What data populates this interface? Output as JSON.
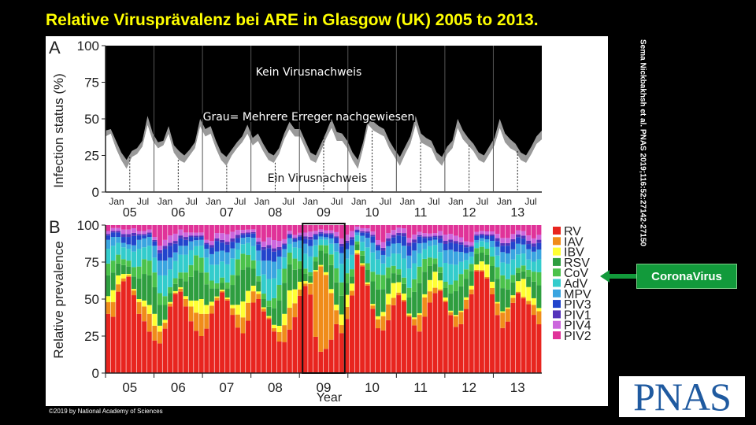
{
  "title": "Relative Virusprävalenz bei ARE in Glasgow (UK) 2005 to 2013.",
  "credit": "Sema Nickbakhsh et al. PNAS 2019;116:52:27142-27150",
  "copyright": "©2019 by National Academy of Sciences",
  "logo_text": "PNAS",
  "callout": {
    "label": "CoronaVirus",
    "arrow_color": "#129a3b"
  },
  "colors": {
    "none": "#000000",
    "multiple": "#9a9a9a",
    "single": "#ffffff"
  },
  "chart_data": [
    {
      "type": "area",
      "panel_label": "A",
      "ylabel": "Infection status (%)",
      "ylim": [
        0,
        100
      ],
      "yticks": [
        "0",
        "25",
        "50",
        "75",
        "100"
      ],
      "month_ticks": [
        "Jan",
        "Jul"
      ],
      "year_labels": [
        "05",
        "06",
        "07",
        "08",
        "09",
        "10",
        "11",
        "12",
        "13"
      ],
      "annotations": {
        "none": "Kein Virusnachweis",
        "multiple": "Grau= Mehrere Erreger nachgewiesen",
        "single": "Ein Virusnachweis"
      },
      "series": [
        {
          "key": "single",
          "values": [
            38,
            40,
            30,
            22,
            16,
            24,
            26,
            31,
            46,
            35,
            30,
            32,
            40,
            27,
            22,
            20,
            25,
            30,
            45,
            38,
            40,
            30,
            22,
            18,
            25,
            30,
            34,
            40,
            32,
            35,
            28,
            22,
            20,
            26,
            36,
            43,
            38,
            38,
            30,
            22,
            20,
            28,
            37,
            44,
            35,
            35,
            30,
            22,
            16,
            30,
            46,
            42,
            40,
            38,
            30,
            24,
            18,
            26,
            33,
            46,
            34,
            32,
            30,
            22,
            18,
            26,
            30,
            44,
            36,
            32,
            28,
            22,
            20,
            26,
            32,
            44,
            34,
            30,
            28,
            22,
            20,
            26,
            33,
            36
          ]
        },
        {
          "key": "multiple",
          "values": [
            42,
            43,
            35,
            27,
            22,
            28,
            30,
            35,
            52,
            40,
            34,
            35,
            45,
            32,
            28,
            25,
            29,
            34,
            50,
            43,
            45,
            35,
            27,
            24,
            29,
            34,
            38,
            46,
            37,
            40,
            33,
            27,
            25,
            30,
            40,
            48,
            43,
            43,
            35,
            27,
            25,
            33,
            41,
            50,
            41,
            40,
            35,
            27,
            22,
            34,
            51,
            48,
            45,
            43,
            35,
            29,
            24,
            31,
            38,
            52,
            40,
            37,
            35,
            27,
            24,
            31,
            35,
            50,
            42,
            37,
            33,
            27,
            25,
            31,
            37,
            50,
            40,
            36,
            33,
            27,
            25,
            31,
            38,
            42
          ]
        }
      ]
    },
    {
      "type": "bar",
      "panel_label": "B",
      "ylabel": "Relative prevalence",
      "xlabel": "Year",
      "ylim": [
        0,
        100
      ],
      "yticks": [
        "0",
        "25",
        "50",
        "75",
        "100"
      ],
      "year_labels": [
        "05",
        "06",
        "07",
        "08",
        "09",
        "10",
        "11",
        "12",
        "13"
      ],
      "highlight_year": "09",
      "series": [
        {
          "name": "RV",
          "color": "#e8251f",
          "values": [
            40,
            38,
            55,
            62,
            65,
            50,
            40,
            35,
            28,
            22,
            20,
            30,
            45,
            55,
            55,
            45,
            35,
            28,
            25,
            30,
            45,
            55,
            60,
            48,
            35,
            28,
            25,
            35,
            50,
            58,
            45,
            35,
            25,
            20,
            22,
            30,
            40,
            60,
            70,
            60,
            25,
            15,
            18,
            25,
            35,
            30,
            45,
            65,
            80,
            70,
            55,
            40,
            30,
            30,
            40,
            55,
            60,
            45,
            35,
            30,
            25,
            35,
            50,
            60,
            55,
            45,
            40,
            35,
            40,
            55,
            65,
            75,
            70,
            60,
            50,
            40,
            35,
            40,
            55,
            60,
            50,
            40,
            35,
            30
          ]
        },
        {
          "name": "IAV",
          "color": "#f08c1a",
          "values": [
            8,
            10,
            5,
            2,
            1,
            3,
            8,
            10,
            12,
            10,
            8,
            4,
            2,
            1,
            2,
            5,
            10,
            12,
            15,
            10,
            6,
            2,
            1,
            1,
            4,
            8,
            10,
            12,
            8,
            4,
            2,
            1,
            2,
            6,
            12,
            15,
            10,
            5,
            2,
            8,
            45,
            60,
            55,
            35,
            10,
            6,
            10,
            4,
            1,
            1,
            1,
            2,
            6,
            10,
            12,
            6,
            2,
            1,
            1,
            4,
            10,
            12,
            8,
            4,
            1,
            1,
            2,
            8,
            10,
            8,
            4,
            1,
            1,
            1,
            4,
            8,
            12,
            10,
            4,
            1,
            1,
            2,
            6,
            8
          ]
        },
        {
          "name": "IBV",
          "color": "#ffff33",
          "values": [
            4,
            8,
            6,
            3,
            1,
            1,
            2,
            4,
            6,
            8,
            4,
            2,
            1,
            1,
            1,
            2,
            4,
            8,
            10,
            6,
            3,
            1,
            1,
            1,
            2,
            6,
            10,
            8,
            4,
            2,
            1,
            1,
            2,
            4,
            8,
            12,
            10,
            6,
            2,
            1,
            1,
            1,
            2,
            3,
            4,
            8,
            10,
            6,
            2,
            1,
            1,
            1,
            2,
            3,
            8,
            12,
            8,
            4,
            1,
            1,
            1,
            2,
            8,
            12,
            6,
            2,
            1,
            1,
            1,
            2,
            3,
            4,
            6,
            8,
            4,
            1,
            1,
            1,
            2,
            8,
            12,
            8,
            4,
            2
          ]
        },
        {
          "name": "RSV",
          "color": "#2e9e3f",
          "values": [
            14,
            12,
            8,
            6,
            5,
            8,
            14,
            18,
            20,
            18,
            14,
            10,
            6,
            5,
            6,
            10,
            16,
            20,
            18,
            14,
            10,
            6,
            5,
            6,
            12,
            18,
            20,
            16,
            12,
            8,
            6,
            6,
            10,
            16,
            22,
            18,
            14,
            10,
            6,
            5,
            6,
            10,
            14,
            18,
            16,
            14,
            10,
            6,
            4,
            5,
            8,
            14,
            18,
            16,
            12,
            8,
            6,
            6,
            10,
            16,
            18,
            14,
            10,
            6,
            5,
            6,
            12,
            18,
            20,
            16,
            12,
            8,
            6,
            6,
            10,
            16,
            18,
            14,
            10,
            6,
            5,
            6,
            10,
            14
          ]
        },
        {
          "name": "CoV",
          "color": "#4bc24b",
          "values": [
            8,
            8,
            6,
            4,
            4,
            6,
            8,
            10,
            10,
            10,
            8,
            6,
            4,
            4,
            4,
            6,
            8,
            10,
            10,
            8,
            6,
            4,
            4,
            4,
            6,
            10,
            10,
            8,
            6,
            4,
            4,
            4,
            6,
            10,
            10,
            8,
            8,
            6,
            4,
            3,
            3,
            4,
            6,
            8,
            10,
            10,
            8,
            6,
            2,
            3,
            4,
            6,
            10,
            10,
            8,
            6,
            4,
            4,
            6,
            8,
            10,
            8,
            6,
            4,
            4,
            4,
            6,
            8,
            10,
            8,
            6,
            4,
            4,
            4,
            6,
            8,
            10,
            8,
            6,
            4,
            4,
            4,
            6,
            8
          ]
        },
        {
          "name": "AdV",
          "color": "#33cccc",
          "values": [
            10,
            10,
            8,
            8,
            8,
            10,
            12,
            8,
            10,
            10,
            12,
            14,
            12,
            12,
            12,
            12,
            10,
            6,
            8,
            10,
            12,
            14,
            12,
            12,
            10,
            6,
            6,
            8,
            10,
            12,
            14,
            14,
            12,
            10,
            8,
            6,
            8,
            10,
            12,
            12,
            8,
            4,
            4,
            8,
            12,
            14,
            12,
            12,
            4,
            6,
            10,
            12,
            10,
            8,
            8,
            10,
            12,
            12,
            12,
            10,
            8,
            6,
            8,
            10,
            10,
            12,
            14,
            12,
            10,
            8,
            6,
            4,
            4,
            4,
            6,
            8,
            10,
            12,
            12,
            10,
            8,
            6,
            6,
            8
          ]
        },
        {
          "name": "MPV",
          "color": "#3aa5e0",
          "values": [
            6,
            6,
            4,
            3,
            3,
            4,
            6,
            6,
            6,
            8,
            10,
            10,
            8,
            6,
            6,
            6,
            6,
            4,
            4,
            6,
            8,
            10,
            8,
            8,
            6,
            4,
            4,
            4,
            6,
            8,
            10,
            12,
            10,
            8,
            6,
            4,
            4,
            6,
            8,
            8,
            4,
            2,
            2,
            4,
            6,
            8,
            8,
            8,
            2,
            4,
            6,
            6,
            6,
            6,
            8,
            8,
            8,
            8,
            8,
            8,
            6,
            4,
            4,
            4,
            6,
            8,
            10,
            10,
            8,
            6,
            4,
            2,
            2,
            2,
            4,
            6,
            8,
            8,
            8,
            8,
            6,
            6,
            6,
            6
          ]
        },
        {
          "name": "PIV3",
          "color": "#2244cc",
          "values": [
            3,
            3,
            3,
            4,
            5,
            6,
            3,
            2,
            2,
            3,
            5,
            8,
            8,
            6,
            5,
            4,
            3,
            2,
            2,
            3,
            5,
            8,
            6,
            5,
            4,
            3,
            2,
            2,
            3,
            5,
            8,
            8,
            6,
            4,
            3,
            2,
            2,
            3,
            4,
            5,
            3,
            2,
            2,
            3,
            4,
            5,
            5,
            5,
            1,
            2,
            3,
            4,
            3,
            3,
            4,
            5,
            6,
            6,
            6,
            5,
            4,
            3,
            2,
            2,
            3,
            4,
            5,
            6,
            6,
            5,
            4,
            3,
            2,
            2,
            3,
            4,
            5,
            6,
            6,
            5,
            4,
            3,
            3,
            4
          ]
        },
        {
          "name": "PIV1",
          "color": "#5533bb",
          "values": [
            1,
            1,
            1,
            2,
            2,
            2,
            1,
            1,
            1,
            1,
            2,
            2,
            2,
            2,
            2,
            2,
            1,
            1,
            1,
            1,
            2,
            2,
            2,
            2,
            2,
            2,
            1,
            1,
            1,
            2,
            2,
            2,
            2,
            2,
            1,
            1,
            1,
            1,
            2,
            2,
            1,
            1,
            1,
            1,
            1,
            2,
            2,
            2,
            1,
            1,
            1,
            1,
            1,
            2,
            2,
            2,
            2,
            2,
            2,
            2,
            1,
            1,
            1,
            1,
            2,
            2,
            2,
            2,
            2,
            2,
            1,
            1,
            1,
            1,
            1,
            2,
            2,
            2,
            2,
            2,
            2,
            2,
            2,
            2
          ]
        },
        {
          "name": "PIV4",
          "color": "#cc66dd",
          "values": [
            2,
            2,
            2,
            3,
            3,
            3,
            2,
            2,
            2,
            2,
            3,
            4,
            5,
            5,
            4,
            3,
            2,
            2,
            2,
            2,
            3,
            4,
            5,
            5,
            4,
            3,
            2,
            2,
            2,
            3,
            4,
            5,
            5,
            4,
            3,
            2,
            2,
            2,
            3,
            4,
            2,
            2,
            2,
            2,
            3,
            4,
            5,
            5,
            2,
            2,
            2,
            2,
            3,
            4,
            4,
            4,
            4,
            3,
            3,
            3,
            2,
            2,
            2,
            2,
            3,
            4,
            4,
            4,
            4,
            3,
            3,
            2,
            2,
            2,
            2,
            3,
            4,
            4,
            4,
            3,
            3,
            3,
            3,
            3
          ]
        },
        {
          "name": "PIV2",
          "color": "#e03399",
          "values": [
            4,
            2,
            2,
            3,
            3,
            2,
            4,
            4,
            3,
            8,
            14,
            10,
            7,
            6,
            3,
            5,
            5,
            5,
            5,
            10,
            12,
            6,
            6,
            6,
            4,
            3,
            3,
            3,
            3,
            10,
            12,
            8,
            9,
            10,
            10,
            4,
            7,
            6,
            6,
            5,
            4,
            3,
            4,
            4,
            5,
            10,
            8,
            5,
            1,
            2,
            2,
            4,
            10,
            12,
            6,
            4,
            2,
            2,
            8,
            6,
            4,
            5,
            6,
            6,
            4,
            6,
            6,
            8,
            10,
            14,
            14,
            5,
            4,
            4,
            4,
            6,
            10,
            10,
            7,
            4,
            4,
            6,
            8,
            6
          ]
        }
      ]
    }
  ]
}
